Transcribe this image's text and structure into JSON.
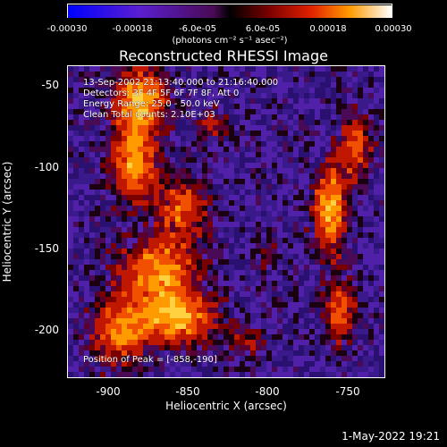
{
  "colorbar": {
    "ticks": [
      "-0.00030",
      "-0.00018",
      "-6.0e-05",
      "6.0e-05",
      "0.00018",
      "0.00030"
    ],
    "units": "(photons cm⁻² s⁻¹ asec⁻²)"
  },
  "title": "Reconstructed RHESSI Image",
  "annotations": {
    "time_range": "13-Sep-2002 21:13:40.000 to 21:16:40.000",
    "detectors": "Detectors: 3F 4F 5F 6F 7F 8F, Att 0",
    "energy": "Energy Range: 25.0 - 50.0 keV",
    "clean": "Clean     Total counts: 2.10E+03",
    "position": "Position of Peak = [-858,-190]"
  },
  "axes": {
    "xlabel": "Heliocentric X (arcsec)",
    "ylabel": "Heliocentric Y (arcsec)",
    "xticks": [
      "-900",
      "-850",
      "-800",
      "-750"
    ],
    "yticks": [
      "-50",
      "-100",
      "-150",
      "-200"
    ]
  },
  "timestamp": "1-May-2022 19:21"
}
